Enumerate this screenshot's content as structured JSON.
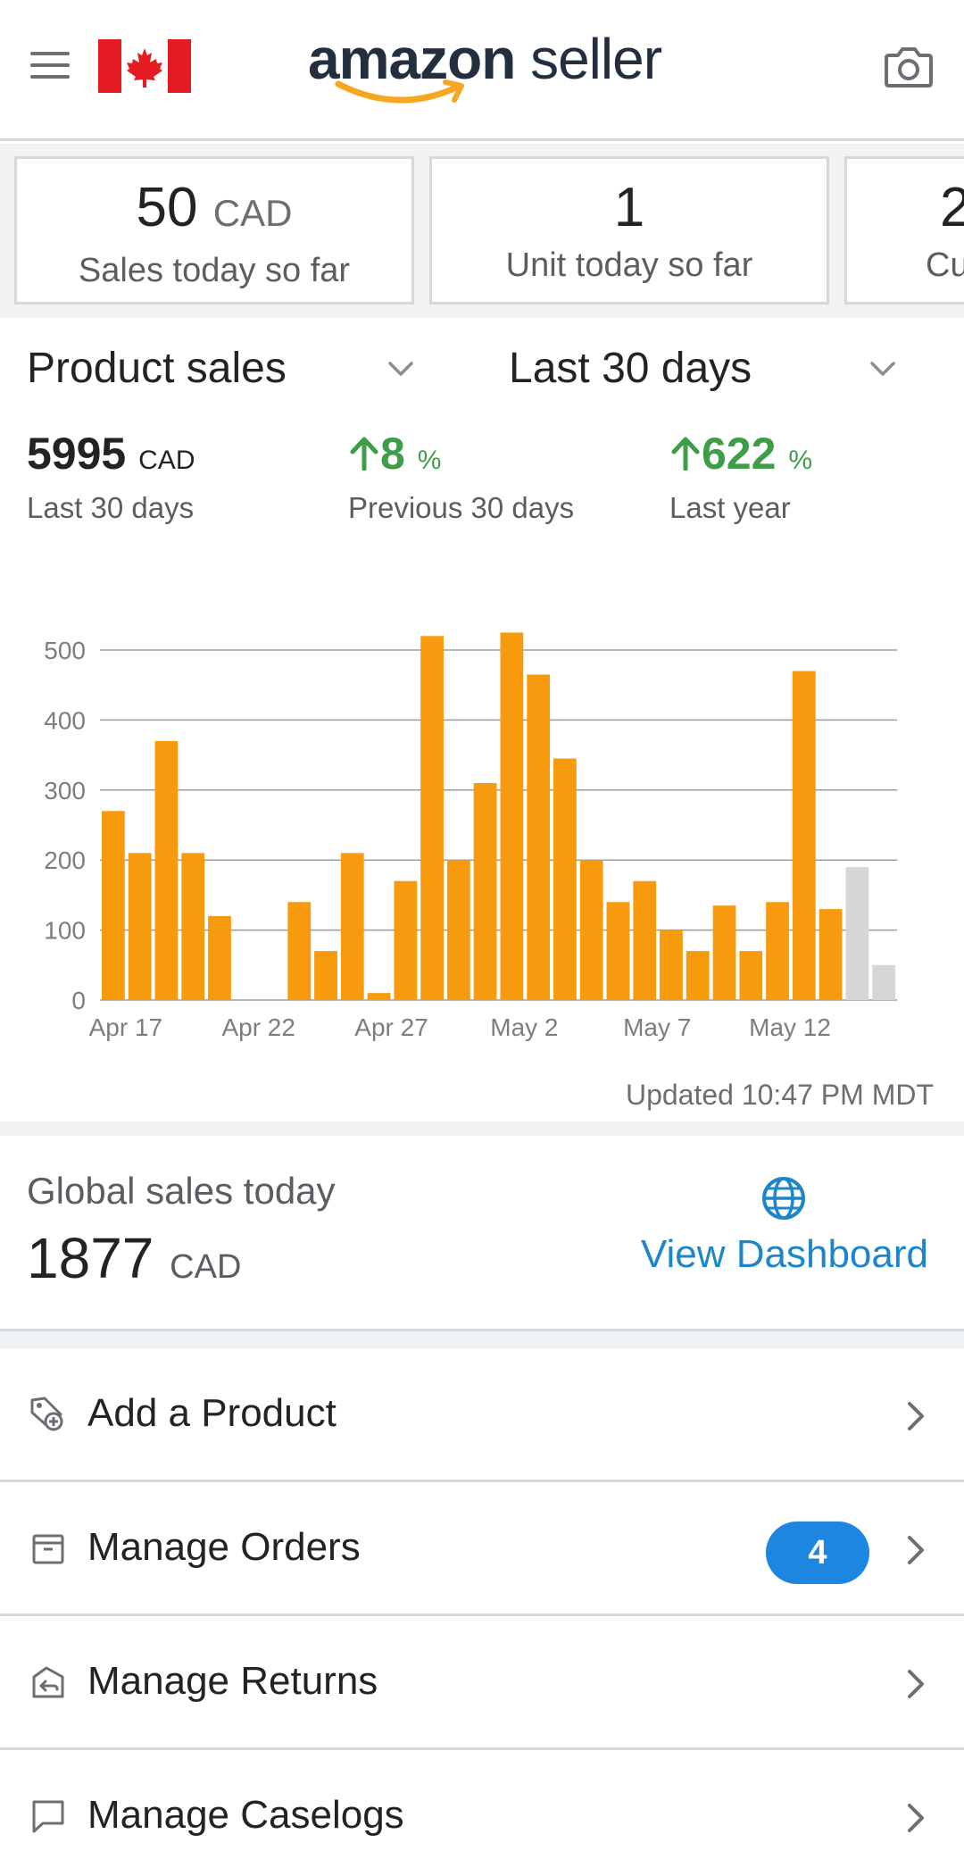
{
  "header": {
    "logo_amazon": "amazon",
    "logo_seller": "seller",
    "icons": [
      "menu-icon",
      "canada-flag",
      "camera-icon"
    ]
  },
  "cards": [
    {
      "value": "50",
      "unit": "CAD",
      "label": "Sales today so far"
    },
    {
      "value": "1",
      "unit": "",
      "label": "Unit today so far"
    },
    {
      "value": "2",
      "unit": "",
      "label": "Cu"
    }
  ],
  "selectors": {
    "metric": "Product sales",
    "range": "Last 30 days"
  },
  "metrics": {
    "total": {
      "value": "5995",
      "unit": "CAD",
      "label": "Last 30 days"
    },
    "prev": {
      "value": "8",
      "unit": "%",
      "label": "Previous 30 days"
    },
    "year": {
      "value": "622",
      "unit": "%",
      "label": "Last year"
    }
  },
  "chart_data": {
    "type": "bar",
    "ylim": [
      0,
      500
    ],
    "yticks": [
      0,
      100,
      200,
      300,
      400,
      500
    ],
    "x_tick_labels": [
      "Apr 17",
      "Apr 22",
      "Apr 27",
      "May 2",
      "May 7",
      "May 12"
    ],
    "values": [
      270,
      210,
      370,
      210,
      120,
      0,
      0,
      140,
      70,
      210,
      10,
      170,
      520,
      200,
      310,
      525,
      465,
      345,
      200,
      140,
      170,
      100,
      70,
      135,
      70,
      140,
      470,
      130,
      190,
      50
    ],
    "highlight_color": "#f89a0e",
    "muted_color": "#d6d6d6",
    "muted_last_n": 2,
    "grid": true
  },
  "updated": "Updated 10:47 PM MDT",
  "global": {
    "title": "Global sales today",
    "value": "1877",
    "unit": "CAD",
    "link": "View Dashboard"
  },
  "menu": [
    {
      "label": "Add a Product",
      "icon": "add-product-icon"
    },
    {
      "label": "Manage Orders",
      "icon": "orders-box-icon",
      "badge": "4"
    },
    {
      "label": "Manage Returns",
      "icon": "returns-icon"
    },
    {
      "label": "Manage Caselogs",
      "icon": "chat-bubble-icon"
    }
  ],
  "colors": {
    "accent_orange": "#f89a0e",
    "link_blue": "#1c86c8",
    "badge_blue": "#1c86e0",
    "green": "#3e9d46"
  }
}
